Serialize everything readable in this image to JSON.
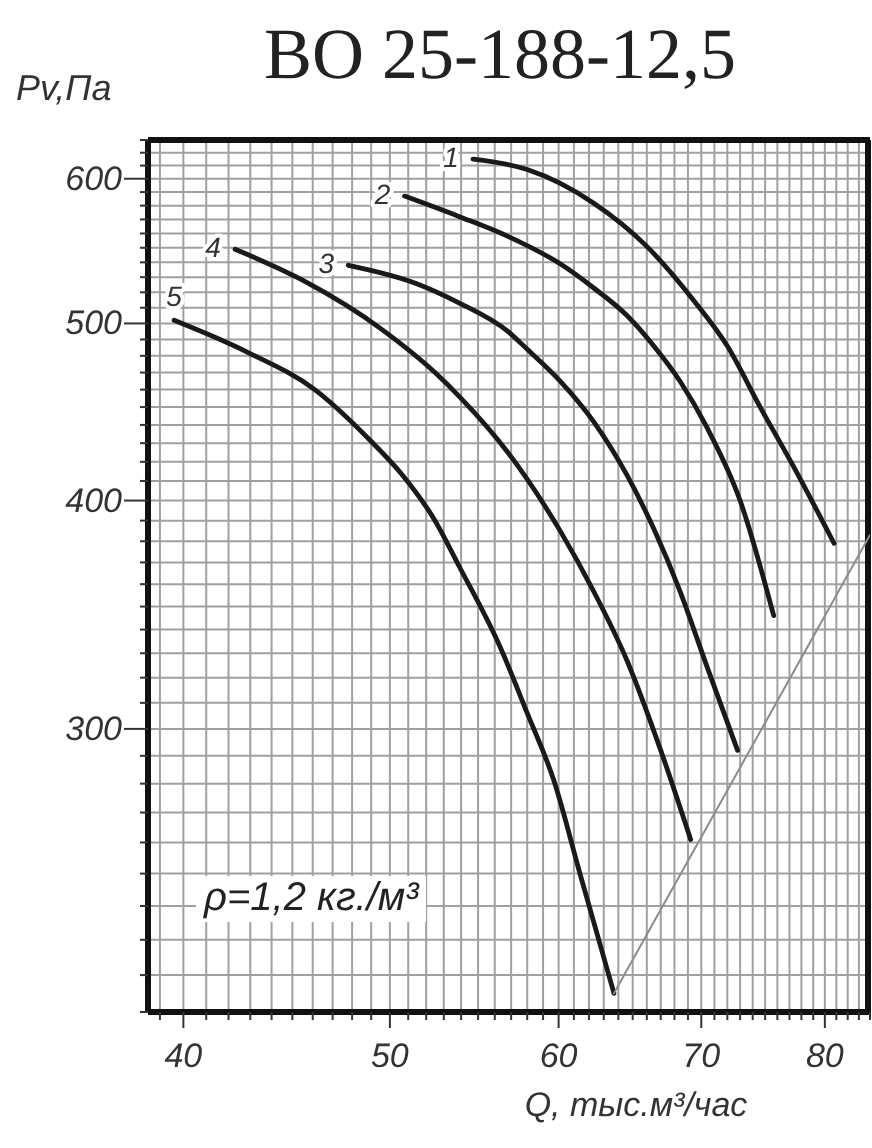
{
  "chart_data": {
    "type": "line",
    "title": "ВО 25-188-12,5",
    "xlabel": "Q, тыс.м³/час",
    "ylabel": "Pv,Па",
    "annotations": [
      "ρ=1,2 кг./м³"
    ],
    "log": "xy",
    "grid": true,
    "xlim": [
      38.5,
      84
    ],
    "ylim": [
      210,
      630
    ],
    "xticks": [
      {
        "value": 39,
        "label": null
      },
      40,
      {
        "value": 41,
        "label": null
      },
      {
        "value": 42,
        "label": null
      },
      {
        "value": 43,
        "label": null
      },
      {
        "value": 44,
        "label": null
      },
      {
        "value": 45,
        "label": null
      },
      {
        "value": 46,
        "label": null
      },
      {
        "value": 47,
        "label": null
      },
      {
        "value": 48,
        "label": null
      },
      {
        "value": 49,
        "label": null
      },
      50,
      {
        "value": 51,
        "label": null
      },
      {
        "value": 52,
        "label": null
      },
      {
        "value": 53,
        "label": null
      },
      {
        "value": 54,
        "label": null
      },
      {
        "value": 55,
        "label": null
      },
      {
        "value": 56,
        "label": null
      },
      {
        "value": 57,
        "label": null
      },
      {
        "value": 58,
        "label": null
      },
      {
        "value": 59,
        "label": null
      },
      60,
      {
        "value": 61,
        "label": null
      },
      {
        "value": 62,
        "label": null
      },
      {
        "value": 63,
        "label": null
      },
      {
        "value": 64,
        "label": null
      },
      {
        "value": 65,
        "label": null
      },
      {
        "value": 66,
        "label": null
      },
      {
        "value": 67,
        "label": null
      },
      {
        "value": 68,
        "label": null
      },
      {
        "value": 69,
        "label": null
      },
      70,
      {
        "value": 71,
        "label": null
      },
      {
        "value": 72,
        "label": null
      },
      {
        "value": 73,
        "label": null
      },
      {
        "value": 74,
        "label": null
      },
      {
        "value": 75,
        "label": null
      },
      {
        "value": 76,
        "label": null
      },
      {
        "value": 77,
        "label": null
      },
      {
        "value": 78,
        "label": null
      },
      {
        "value": 79,
        "label": null
      },
      80,
      {
        "value": 81,
        "label": null
      },
      {
        "value": 82,
        "label": null
      },
      {
        "value": 83,
        "label": null
      },
      {
        "value": 84,
        "label": null
      }
    ],
    "yticks": [
      {
        "value": 210,
        "label": null
      },
      {
        "value": 220,
        "label": null
      },
      {
        "value": 230,
        "label": null
      },
      {
        "value": 240,
        "label": null
      },
      {
        "value": 250,
        "label": null
      },
      {
        "value": 260,
        "label": null
      },
      {
        "value": 270,
        "label": null
      },
      {
        "value": 280,
        "label": null
      },
      {
        "value": 290,
        "label": null
      },
      300,
      {
        "value": 310,
        "label": null
      },
      {
        "value": 320,
        "label": null
      },
      {
        "value": 330,
        "label": null
      },
      {
        "value": 340,
        "label": null
      },
      {
        "value": 350,
        "label": null
      },
      {
        "value": 360,
        "label": null
      },
      {
        "value": 370,
        "label": null
      },
      {
        "value": 380,
        "label": null
      },
      {
        "value": 390,
        "label": null
      },
      400,
      {
        "value": 410,
        "label": null
      },
      {
        "value": 420,
        "label": null
      },
      {
        "value": 430,
        "label": null
      },
      {
        "value": 440,
        "label": null
      },
      {
        "value": 450,
        "label": null
      },
      {
        "value": 460,
        "label": null
      },
      {
        "value": 470,
        "label": null
      },
      {
        "value": 480,
        "label": null
      },
      {
        "value": 490,
        "label": null
      },
      500,
      {
        "value": 510,
        "label": null
      },
      {
        "value": 520,
        "label": null
      },
      {
        "value": 530,
        "label": null
      },
      {
        "value": 540,
        "label": null
      },
      {
        "value": 550,
        "label": null
      },
      {
        "value": 560,
        "label": null
      },
      {
        "value": 570,
        "label": null
      },
      {
        "value": 580,
        "label": null
      },
      {
        "value": 590,
        "label": null
      },
      600,
      {
        "value": 610,
        "label": null
      },
      {
        "value": 620,
        "label": null
      },
      {
        "value": 630,
        "label": null
      }
    ],
    "series": [
      {
        "name": "1",
        "color": "#1a1a1a",
        "x": [
          54.7,
          58.0,
          62.3,
          66.0,
          69.4,
          72.0,
          74.6,
          77.3,
          80.8
        ],
        "values": [
          615,
          607,
          582,
          551,
          515,
          486,
          450,
          418,
          379
        ]
      },
      {
        "name": "2",
        "color": "#1a1a1a",
        "x": [
          50.8,
          53.9,
          56.8,
          60.1,
          62.3,
          64.6,
          66.5,
          68.4,
          70.4,
          73.0,
          75.7
        ],
        "values": [
          587,
          572,
          558,
          539,
          523,
          505,
          486,
          465,
          439,
          400,
          346
        ]
      },
      {
        "name": "3",
        "color": "#1a1a1a",
        "x": [
          47.8,
          51.4,
          53.9,
          56.8,
          58.0,
          60.1,
          62.3,
          64.6,
          66.5,
          68.4,
          70.4,
          72.8
        ],
        "values": [
          538,
          526,
          513,
          495,
          484,
          465,
          442,
          413,
          386,
          357,
          325,
          292
        ]
      },
      {
        "name": "4",
        "color": "#1a1a1a",
        "x": [
          42.3,
          45.5,
          49.6,
          52.5,
          53.9,
          56.8,
          60.1,
          62.3,
          64.6,
          67.0,
          69.2
        ],
        "values": [
          549,
          528,
          496,
          470,
          456,
          425,
          385,
          357,
          327,
          292,
          261
        ]
      },
      {
        "name": "5",
        "color": "#1a1a1a",
        "x": [
          39.6,
          42.9,
          46.1,
          48.9,
          50.6,
          52.5,
          53.9,
          56.3,
          58.0,
          59.7,
          61.4,
          63.7
        ],
        "values": [
          502,
          482,
          460,
          432,
          414,
          390,
          368,
          333,
          306,
          281,
          250,
          215
        ]
      },
      {
        "color": "#8c8c8c",
        "x": [
          63.7,
          84
        ],
        "values": [
          215,
          383
        ]
      }
    ]
  }
}
